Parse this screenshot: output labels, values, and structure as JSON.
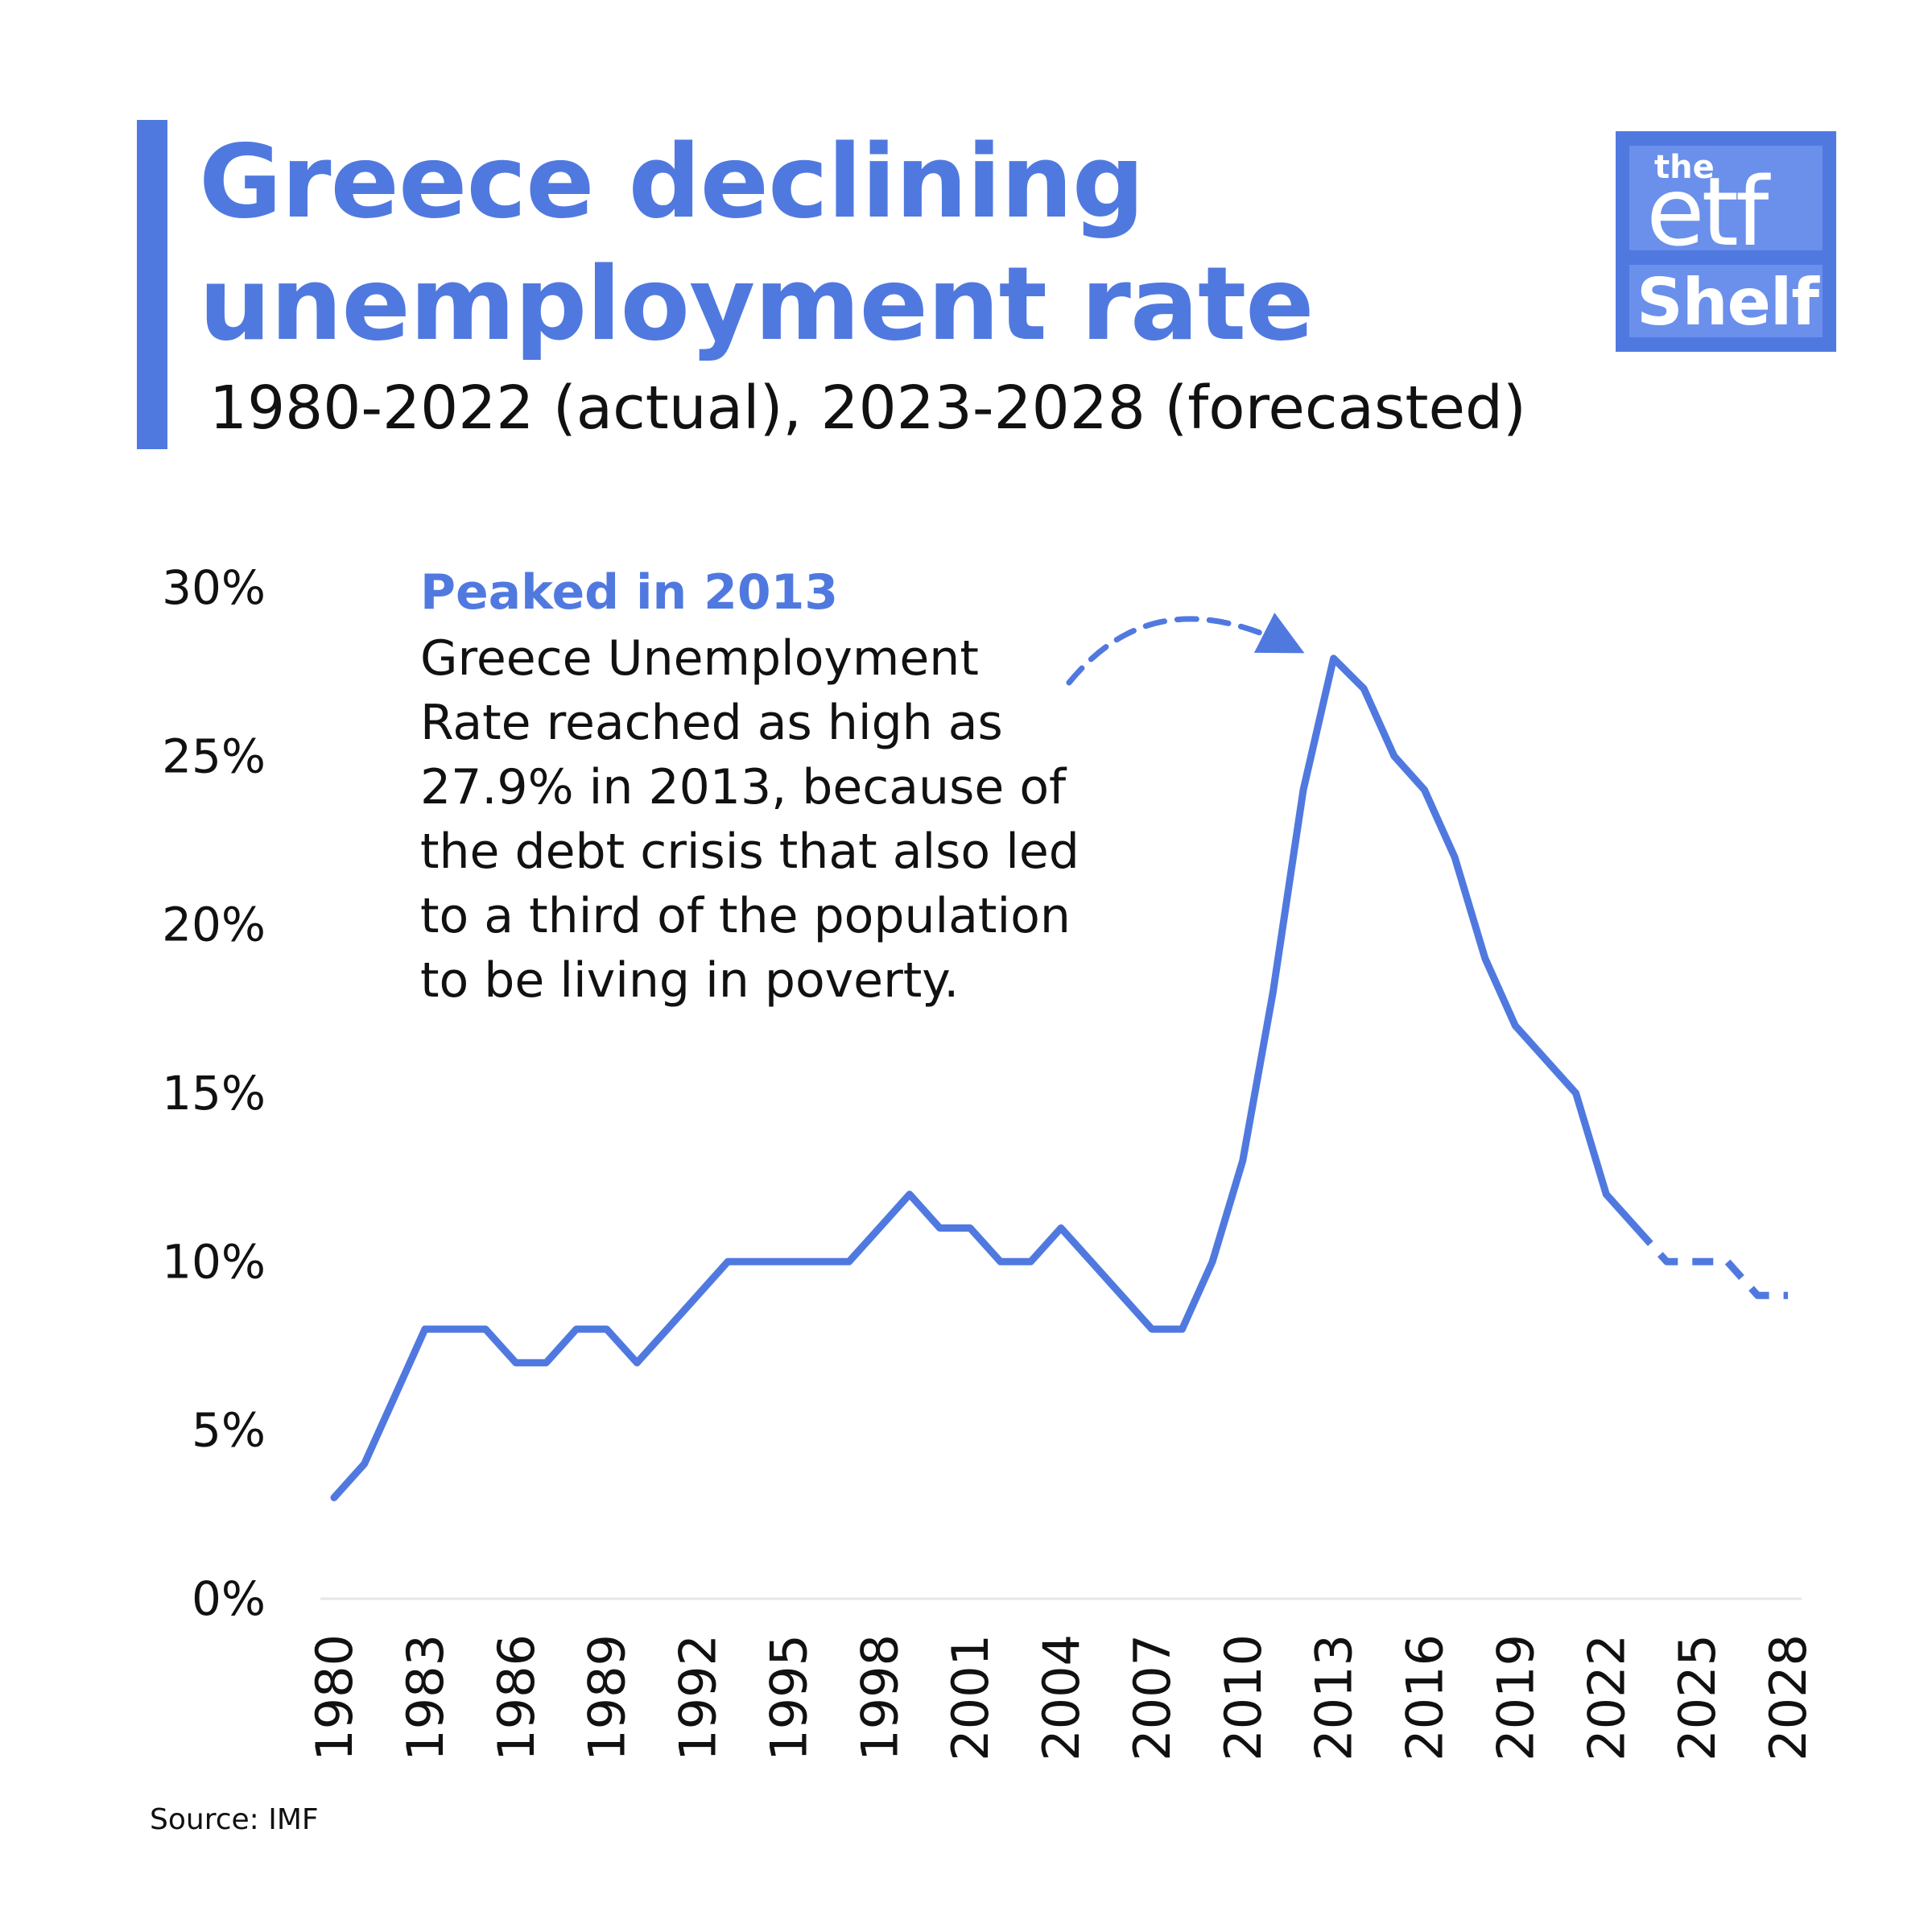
{
  "header": {
    "title_line1": "Greece declining",
    "title_line2": "unemployment rate",
    "subtitle": "1980-2022 (actual), 2023-2028 (forecasted)"
  },
  "logo": {
    "the": "the",
    "etf": "etf",
    "shelf": "Shelf"
  },
  "annotation": {
    "heading": "Peaked in 2013",
    "body": "Greece Unemployment\nRate reached as high as\n27.9% in 2013, because of\nthe debt crisis that also led\nto a third of the population\nto be living in poverty."
  },
  "source": "Source: IMF",
  "colors": {
    "accent": "#5079e0",
    "text": "#111111",
    "axis_line": "#e6e6e6"
  },
  "chart_data": {
    "type": "line",
    "title": "Greece declining unemployment rate",
    "subtitle": "1980-2022 (actual), 2023-2028 (forecasted)",
    "xlabel": "",
    "ylabel": "",
    "ylim": [
      0,
      30
    ],
    "y_ticks": [
      "0%",
      "5%",
      "10%",
      "15%",
      "20%",
      "25%",
      "30%"
    ],
    "x_tick_labels": [
      "1980",
      "1983",
      "1986",
      "1989",
      "1992",
      "1995",
      "1998",
      "2001",
      "2004",
      "2007",
      "2010",
      "2013",
      "2016",
      "2019",
      "2022",
      "2025",
      "2028"
    ],
    "grid": false,
    "legend": "none",
    "series": [
      {
        "style": "solid",
        "x": [
          1980,
          1981,
          1982,
          1983,
          1984,
          1985,
          1986,
          1987,
          1988,
          1989,
          1990,
          1991,
          1992,
          1993,
          1994,
          1995,
          1996,
          1997,
          1998,
          1999,
          2000,
          2001,
          2002,
          2003,
          2004,
          2005,
          2006,
          2007,
          2008,
          2009,
          2010,
          2011,
          2012,
          2013,
          2014,
          2015,
          2016,
          2017,
          2018,
          2019,
          2020,
          2021,
          2022,
          2023
        ],
        "values": [
          3.0,
          4.0,
          6.0,
          8.0,
          8.0,
          8.0,
          7.0,
          7.0,
          8.0,
          8.0,
          7.0,
          8.0,
          9.0,
          10.0,
          10.0,
          10.0,
          10.0,
          10.0,
          11.0,
          12.0,
          11.0,
          11.0,
          10.0,
          10.0,
          11.0,
          10.0,
          9.0,
          8.0,
          8.0,
          10.0,
          13.0,
          18.0,
          24.0,
          27.9,
          27.0,
          25.0,
          24.0,
          22.0,
          19.0,
          17.0,
          16.0,
          15.0,
          12.0,
          11.0
        ]
      },
      {
        "style": "dashed",
        "x": [
          2023,
          2024,
          2025,
          2026,
          2027,
          2028
        ],
        "values": [
          11.0,
          10.0,
          10.0,
          10.0,
          9.0,
          9.0
        ]
      }
    ],
    "annotations": [
      {
        "text": "Peaked in 2013",
        "target_x": 2013,
        "target_y": 27.9
      }
    ]
  }
}
